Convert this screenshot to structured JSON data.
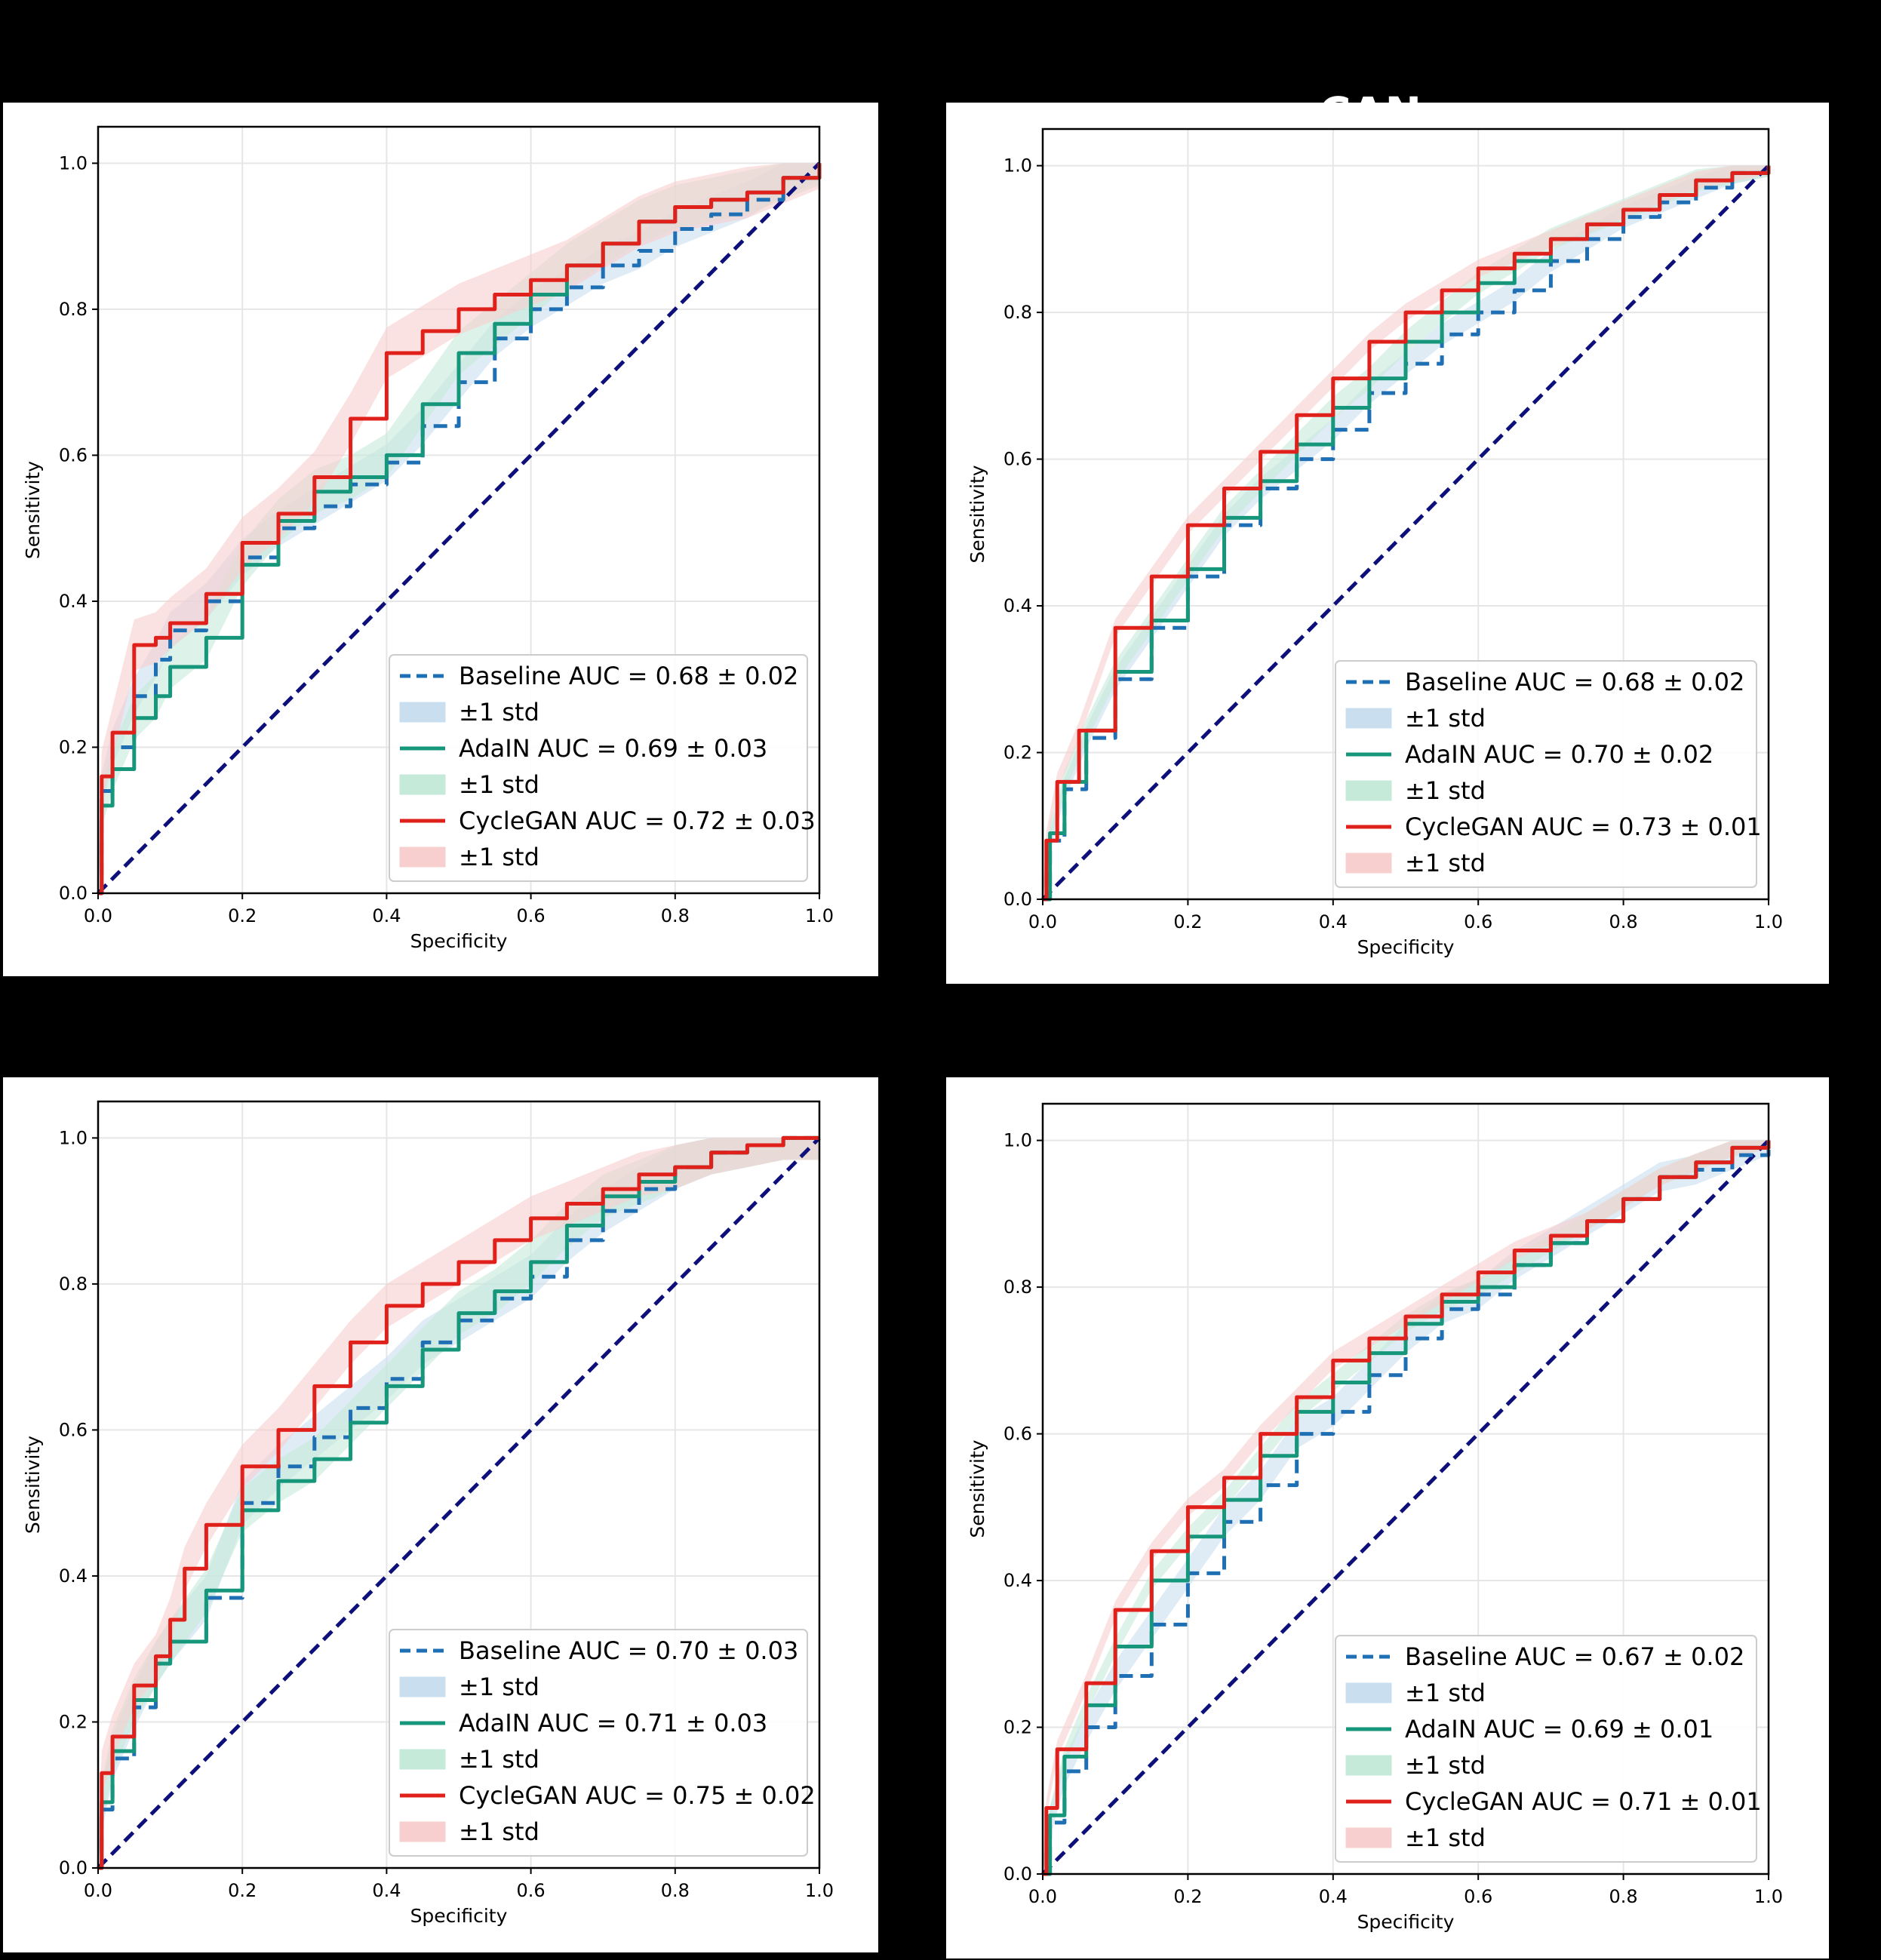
{
  "colors": {
    "background": "#000000",
    "baseline": "#1f6fb4",
    "adain": "#16967a",
    "cyclegan": "#e0201b",
    "baseline_band": "#c9dff0",
    "adain_band": "#c6ead9",
    "cyclegan_band": "#f8cfcf",
    "chance": "#0d0f7a"
  },
  "chart_data": [
    {
      "type": "line",
      "xlabel": "Specificity",
      "ylabel": "Sensitivity",
      "xlim": [
        0,
        1
      ],
      "ylim": [
        0,
        1.05
      ],
      "xticks": [
        "0.0",
        "0.2",
        "0.4",
        "0.6",
        "0.8",
        "1.0"
      ],
      "yticks": [
        "0.0",
        "0.2",
        "0.4",
        "0.6",
        "0.8",
        "1.0"
      ],
      "grid": true,
      "legend_position": "lower-right",
      "series": [
        {
          "name": "Baseline",
          "auc_label": "AUC = 0.68 ± 0.02",
          "band_label": "±1 std",
          "std": 0.025,
          "x": [
            0,
            0.005,
            0.02,
            0.05,
            0.08,
            0.1,
            0.15,
            0.2,
            0.25,
            0.3,
            0.35,
            0.4,
            0.45,
            0.5,
            0.55,
            0.6,
            0.65,
            0.7,
            0.75,
            0.8,
            0.85,
            0.9,
            0.95,
            1.0
          ],
          "y": [
            0,
            0.14,
            0.2,
            0.27,
            0.32,
            0.36,
            0.4,
            0.46,
            0.5,
            0.53,
            0.56,
            0.59,
            0.64,
            0.7,
            0.76,
            0.8,
            0.83,
            0.86,
            0.88,
            0.91,
            0.93,
            0.95,
            0.98,
            1.0
          ]
        },
        {
          "name": "AdaIN",
          "auc_label": "AUC = 0.69 ± 0.03",
          "band_label": "±1 std",
          "std": 0.03,
          "x": [
            0,
            0.005,
            0.02,
            0.05,
            0.08,
            0.1,
            0.15,
            0.2,
            0.25,
            0.3,
            0.35,
            0.4,
            0.45,
            0.5,
            0.55,
            0.6,
            0.65,
            0.7,
            0.75,
            0.8,
            0.85,
            0.9,
            0.95,
            1.0
          ],
          "y": [
            0,
            0.12,
            0.17,
            0.24,
            0.27,
            0.31,
            0.35,
            0.45,
            0.51,
            0.55,
            0.57,
            0.6,
            0.67,
            0.74,
            0.78,
            0.82,
            0.86,
            0.89,
            0.92,
            0.94,
            0.95,
            0.96,
            0.98,
            1.0
          ]
        },
        {
          "name": "CycleGAN",
          "auc_label": "AUC = 0.72 ± 0.03",
          "band_label": "±1 std",
          "std": 0.035,
          "x": [
            0,
            0.005,
            0.02,
            0.05,
            0.08,
            0.1,
            0.15,
            0.2,
            0.25,
            0.3,
            0.35,
            0.4,
            0.45,
            0.5,
            0.55,
            0.6,
            0.65,
            0.7,
            0.75,
            0.8,
            0.85,
            0.9,
            0.95,
            1.0
          ],
          "y": [
            0,
            0.16,
            0.22,
            0.34,
            0.35,
            0.37,
            0.41,
            0.48,
            0.52,
            0.57,
            0.65,
            0.74,
            0.77,
            0.8,
            0.82,
            0.84,
            0.86,
            0.89,
            0.92,
            0.94,
            0.95,
            0.96,
            0.98,
            1.0
          ]
        }
      ]
    },
    {
      "type": "line",
      "xlabel": "Specificity",
      "ylabel": "Sensitivity",
      "xlim": [
        0,
        1
      ],
      "ylim": [
        0,
        1.05
      ],
      "xticks": [
        "0.0",
        "0.2",
        "0.4",
        "0.6",
        "0.8",
        "1.0"
      ],
      "yticks": [
        "0.0",
        "0.2",
        "0.4",
        "0.6",
        "0.8",
        "1.0"
      ],
      "grid": true,
      "legend_position": "lower-right",
      "series": [
        {
          "name": "Baseline",
          "auc_label": "AUC = 0.68 ± 0.02",
          "band_label": "±1 std",
          "std": 0.015,
          "x": [
            0,
            0.01,
            0.03,
            0.06,
            0.1,
            0.15,
            0.2,
            0.25,
            0.3,
            0.35,
            0.4,
            0.45,
            0.5,
            0.55,
            0.6,
            0.65,
            0.7,
            0.75,
            0.8,
            0.85,
            0.9,
            0.95,
            1.0
          ],
          "y": [
            0,
            0.08,
            0.15,
            0.22,
            0.3,
            0.37,
            0.44,
            0.51,
            0.56,
            0.6,
            0.64,
            0.69,
            0.73,
            0.77,
            0.8,
            0.83,
            0.87,
            0.9,
            0.93,
            0.95,
            0.97,
            0.99,
            1.0
          ]
        },
        {
          "name": "AdaIN",
          "auc_label": "AUC = 0.70 ± 0.02",
          "band_label": "±1 std",
          "std": 0.015,
          "x": [
            0,
            0.01,
            0.03,
            0.06,
            0.1,
            0.15,
            0.2,
            0.25,
            0.3,
            0.35,
            0.4,
            0.45,
            0.5,
            0.55,
            0.6,
            0.65,
            0.7,
            0.75,
            0.8,
            0.85,
            0.9,
            0.95,
            1.0
          ],
          "y": [
            0,
            0.09,
            0.16,
            0.23,
            0.31,
            0.38,
            0.45,
            0.52,
            0.57,
            0.62,
            0.67,
            0.71,
            0.76,
            0.8,
            0.84,
            0.87,
            0.9,
            0.92,
            0.94,
            0.96,
            0.98,
            0.99,
            1.0
          ]
        },
        {
          "name": "CycleGAN",
          "auc_label": "AUC = 0.73 ± 0.01",
          "band_label": "±1 std",
          "std": 0.012,
          "x": [
            0,
            0.005,
            0.02,
            0.05,
            0.1,
            0.15,
            0.2,
            0.25,
            0.3,
            0.35,
            0.4,
            0.45,
            0.5,
            0.55,
            0.6,
            0.65,
            0.7,
            0.75,
            0.8,
            0.85,
            0.9,
            0.95,
            1.0
          ],
          "y": [
            0,
            0.08,
            0.16,
            0.23,
            0.37,
            0.44,
            0.51,
            0.56,
            0.61,
            0.66,
            0.71,
            0.76,
            0.8,
            0.83,
            0.86,
            0.88,
            0.9,
            0.92,
            0.94,
            0.96,
            0.98,
            0.99,
            1.0
          ]
        }
      ]
    },
    {
      "type": "line",
      "xlabel": "Specificity",
      "ylabel": "Sensitivity",
      "xlim": [
        0,
        1
      ],
      "ylim": [
        0,
        1.05
      ],
      "xticks": [
        "0.0",
        "0.2",
        "0.4",
        "0.6",
        "0.8",
        "1.0"
      ],
      "yticks": [
        "0.0",
        "0.2",
        "0.4",
        "0.6",
        "0.8",
        "1.0"
      ],
      "grid": true,
      "legend_position": "lower-right",
      "series": [
        {
          "name": "Baseline",
          "auc_label": "AUC = 0.70 ± 0.03",
          "band_label": "±1 std",
          "std": 0.03,
          "x": [
            0,
            0.005,
            0.02,
            0.05,
            0.08,
            0.1,
            0.15,
            0.2,
            0.25,
            0.3,
            0.35,
            0.4,
            0.45,
            0.5,
            0.55,
            0.6,
            0.65,
            0.7,
            0.75,
            0.8,
            0.85,
            0.9,
            0.95,
            1.0
          ],
          "y": [
            0,
            0.08,
            0.15,
            0.22,
            0.28,
            0.31,
            0.37,
            0.5,
            0.55,
            0.59,
            0.63,
            0.67,
            0.72,
            0.75,
            0.78,
            0.81,
            0.86,
            0.9,
            0.93,
            0.96,
            0.98,
            0.99,
            1.0,
            1.0
          ]
        },
        {
          "name": "AdaIN",
          "auc_label": "AUC = 0.71 ± 0.03",
          "band_label": "±1 std",
          "std": 0.03,
          "x": [
            0,
            0.005,
            0.02,
            0.05,
            0.08,
            0.1,
            0.15,
            0.2,
            0.25,
            0.3,
            0.35,
            0.4,
            0.45,
            0.5,
            0.55,
            0.6,
            0.65,
            0.7,
            0.75,
            0.8,
            0.85,
            0.9,
            0.95,
            1.0
          ],
          "y": [
            0,
            0.09,
            0.16,
            0.23,
            0.28,
            0.31,
            0.38,
            0.49,
            0.53,
            0.56,
            0.61,
            0.66,
            0.71,
            0.76,
            0.79,
            0.83,
            0.88,
            0.92,
            0.94,
            0.96,
            0.98,
            0.99,
            1.0,
            1.0
          ]
        },
        {
          "name": "CycleGAN",
          "auc_label": "AUC = 0.75 ± 0.02",
          "band_label": "±1 std",
          "std": 0.03,
          "x": [
            0,
            0.005,
            0.02,
            0.05,
            0.08,
            0.1,
            0.12,
            0.15,
            0.2,
            0.25,
            0.3,
            0.35,
            0.4,
            0.45,
            0.5,
            0.55,
            0.6,
            0.65,
            0.7,
            0.75,
            0.8,
            0.85,
            0.9,
            0.95,
            1.0
          ],
          "y": [
            0,
            0.13,
            0.18,
            0.25,
            0.29,
            0.34,
            0.41,
            0.47,
            0.55,
            0.6,
            0.66,
            0.72,
            0.77,
            0.8,
            0.83,
            0.86,
            0.89,
            0.91,
            0.93,
            0.95,
            0.96,
            0.98,
            0.99,
            1.0,
            1.0
          ]
        }
      ]
    },
    {
      "type": "line",
      "xlabel": "Specificity",
      "ylabel": "Sensitivity",
      "xlim": [
        0,
        1
      ],
      "ylim": [
        0,
        1.05
      ],
      "xticks": [
        "0.0",
        "0.2",
        "0.4",
        "0.6",
        "0.8",
        "1.0"
      ],
      "yticks": [
        "0.0",
        "0.2",
        "0.4",
        "0.6",
        "0.8",
        "1.0"
      ],
      "grid": true,
      "legend_position": "lower-right",
      "series": [
        {
          "name": "Baseline",
          "auc_label": "AUC = 0.67 ± 0.02",
          "band_label": "±1 std",
          "std": 0.02,
          "x": [
            0,
            0.01,
            0.03,
            0.06,
            0.1,
            0.15,
            0.2,
            0.25,
            0.3,
            0.35,
            0.4,
            0.45,
            0.5,
            0.55,
            0.6,
            0.65,
            0.7,
            0.75,
            0.8,
            0.85,
            0.9,
            0.95,
            1.0
          ],
          "y": [
            0,
            0.07,
            0.14,
            0.2,
            0.27,
            0.34,
            0.41,
            0.48,
            0.53,
            0.6,
            0.63,
            0.68,
            0.73,
            0.77,
            0.79,
            0.83,
            0.86,
            0.89,
            0.92,
            0.95,
            0.96,
            0.98,
            1.0
          ]
        },
        {
          "name": "AdaIN",
          "auc_label": "AUC = 0.69 ± 0.01",
          "band_label": "±1 std",
          "std": 0.012,
          "x": [
            0,
            0.01,
            0.03,
            0.06,
            0.1,
            0.15,
            0.2,
            0.25,
            0.3,
            0.35,
            0.4,
            0.45,
            0.5,
            0.55,
            0.6,
            0.65,
            0.7,
            0.75,
            0.8,
            0.85,
            0.9,
            0.95,
            1.0
          ],
          "y": [
            0,
            0.08,
            0.16,
            0.23,
            0.31,
            0.4,
            0.46,
            0.51,
            0.57,
            0.63,
            0.67,
            0.71,
            0.75,
            0.78,
            0.8,
            0.83,
            0.86,
            0.89,
            0.92,
            0.95,
            0.97,
            0.99,
            1.0
          ]
        },
        {
          "name": "CycleGAN",
          "auc_label": "AUC = 0.71 ± 0.01",
          "band_label": "±1 std",
          "std": 0.012,
          "x": [
            0,
            0.005,
            0.02,
            0.06,
            0.1,
            0.15,
            0.2,
            0.25,
            0.3,
            0.35,
            0.4,
            0.45,
            0.5,
            0.55,
            0.6,
            0.65,
            0.7,
            0.75,
            0.8,
            0.85,
            0.9,
            0.95,
            1.0
          ],
          "y": [
            0,
            0.09,
            0.17,
            0.26,
            0.36,
            0.44,
            0.5,
            0.54,
            0.6,
            0.65,
            0.7,
            0.73,
            0.76,
            0.79,
            0.82,
            0.85,
            0.87,
            0.89,
            0.92,
            0.95,
            0.97,
            0.99,
            1.0
          ]
        }
      ]
    }
  ]
}
